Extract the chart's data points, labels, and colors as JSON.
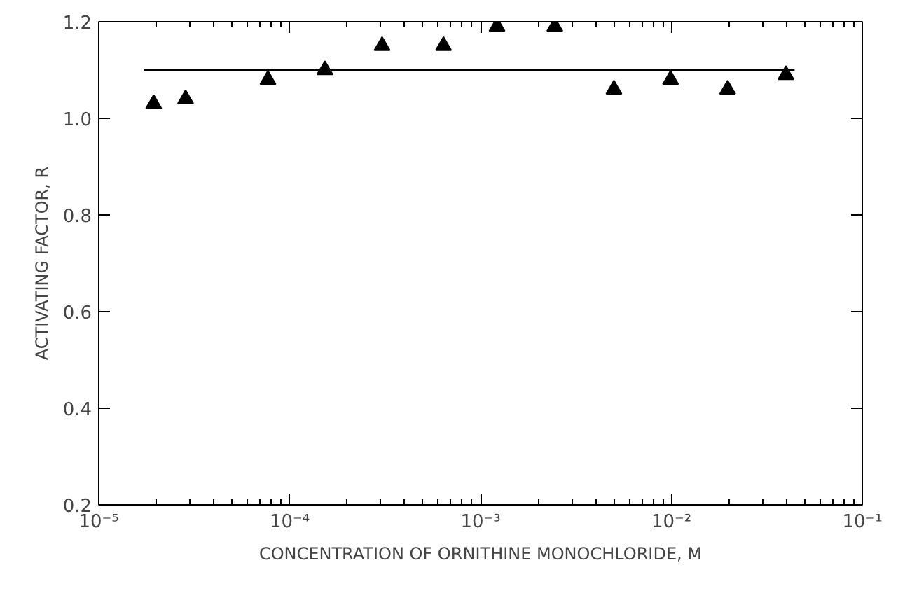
{
  "chart_data": {
    "type": "scatter",
    "xlabel": "CONCENTRATION OF ORNITHINE MONOCHLORIDE, M",
    "ylabel": "ACTIVATING FACTOR, R",
    "log": "x",
    "grid": false,
    "marker": "triangle",
    "xlim": [
      1e-05,
      0.1
    ],
    "xticks": [
      {
        "value": 1e-05,
        "label": "10⁻⁵"
      },
      {
        "value": 0.0001,
        "label": "10⁻⁴"
      },
      {
        "value": 0.001,
        "label": "10⁻³"
      },
      {
        "value": 0.01,
        "label": "10⁻²"
      },
      {
        "value": 0.1,
        "label": "10⁻¹"
      }
    ],
    "ylim": [
      0.2,
      1.2
    ],
    "yticks": [
      {
        "value": 0.2,
        "label": "0.2"
      },
      {
        "value": 0.4,
        "label": "0.4"
      },
      {
        "value": 0.6,
        "label": "0.6"
      },
      {
        "value": 0.8,
        "label": "0.8"
      },
      {
        "value": 1.0,
        "label": "1.0"
      },
      {
        "value": 1.2,
        "label": "1.2"
      }
    ],
    "series": [
      {
        "color": "#000000",
        "x": [
          1.94e-05,
          2.85e-05,
          7.7e-05,
          0.000153,
          0.000305,
          0.00064,
          0.00122,
          0.00245,
          0.005,
          0.0099,
          0.0197,
          0.0398
        ],
        "values": [
          1.03,
          1.04,
          1.08,
          1.1,
          1.15,
          1.15,
          1.19,
          1.19,
          1.06,
          1.08,
          1.06,
          1.09
        ]
      },
      {
        "type": "line",
        "color": "#000000",
        "marker": "none",
        "x": [
          1.73e-05,
          0.0442
        ],
        "values": [
          1.1,
          1.1
        ]
      }
    ]
  }
}
